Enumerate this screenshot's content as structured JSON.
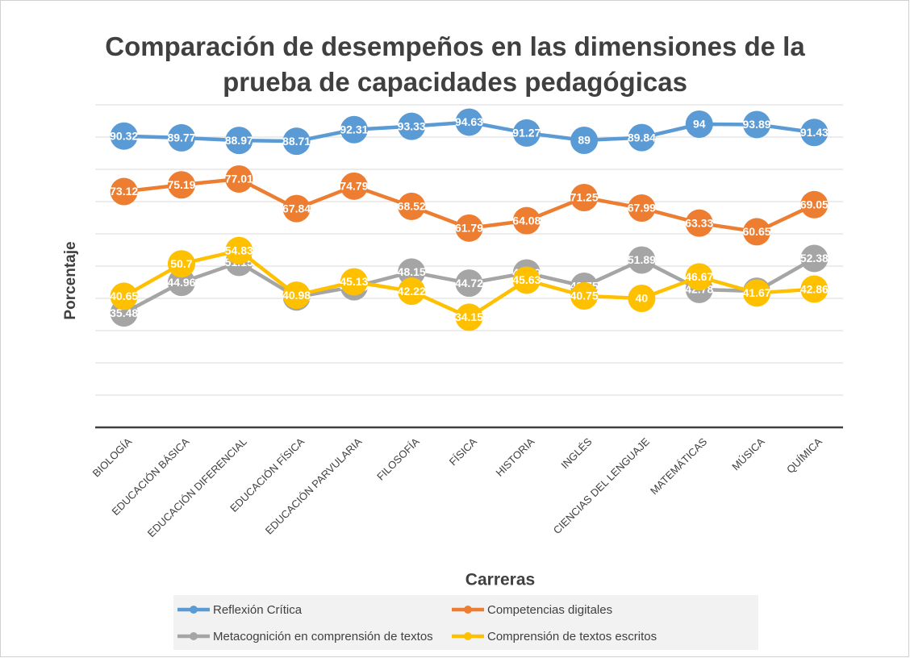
{
  "chart_data": {
    "type": "line",
    "title": "Comparación de desempeños en las dimensiones de la prueba de capacidades pedagógicas",
    "x_label": "Carreras",
    "y_label": "Porcentaje",
    "categories": [
      "BIOLOGÍA",
      "EDUCACIÓN BÁSICA",
      "EDUCACIÓN DIFERENCIAL",
      "EDUCACIÓN FÍSICA",
      "EDUCACIÓN PARVULARIA",
      "FILOSOFÍA",
      "FÍSICA",
      "HISTORIA",
      "INGLÉS",
      "CIENCIAS DEL LENGUAJE",
      "MATEMÁTICAS",
      "MÚSICA",
      "QUÍMICA"
    ],
    "series": [
      {
        "name": "Reflexión Crítica",
        "color": "#5b9bd5",
        "values": [
          90.32,
          89.77,
          88.97,
          88.71,
          92.31,
          93.33,
          94.63,
          91.27,
          89,
          89.84,
          94,
          93.89,
          91.43
        ]
      },
      {
        "name": "Competencias digitales",
        "color": "#ed7d31",
        "values": [
          73.12,
          75.19,
          77.01,
          67.84,
          74.79,
          68.52,
          61.79,
          64.08,
          71.25,
          67.99,
          63.33,
          60.65,
          69.05
        ]
      },
      {
        "name": "Metacognición en comprensión de textos",
        "color": "#a5a5a5",
        "values": [
          35.48,
          44.96,
          51.15,
          40.42,
          43.59,
          48.15,
          44.72,
          47.89,
          43.75,
          51.89,
          42.78,
          42.22,
          52.38
        ]
      },
      {
        "name": "Comprensión de textos escritos",
        "color": "#ffc000",
        "values": [
          40.65,
          50.7,
          54.83,
          40.98,
          45.13,
          42.22,
          34.15,
          45.63,
          40.75,
          40,
          46.67,
          41.67,
          42.86
        ]
      }
    ],
    "ylim": [
      0,
      100
    ],
    "yticks": [
      0,
      10,
      20,
      30,
      40,
      50,
      60,
      70,
      80,
      90,
      100
    ],
    "grid": true
  }
}
